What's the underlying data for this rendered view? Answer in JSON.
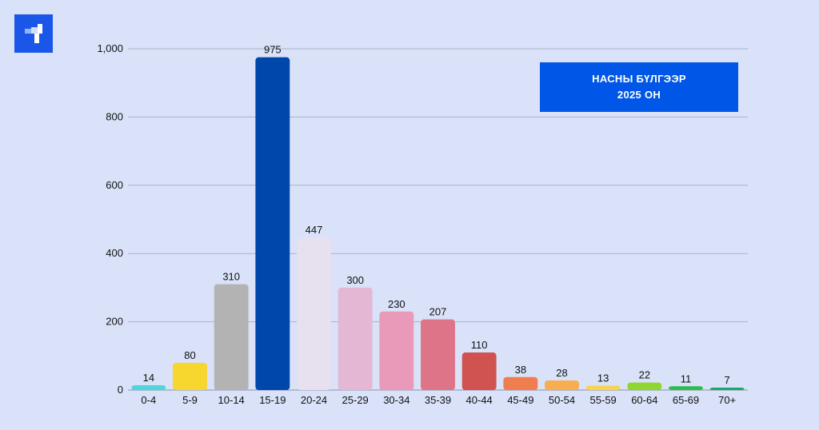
{
  "brand": {
    "logo_icon": "brand-logo-icon",
    "color": "#1a57e8"
  },
  "chart_data": {
    "type": "bar",
    "title_lines": [
      "НАСНЫ БҮЛГЭЭР",
      "2025 ОН"
    ],
    "categories": [
      "0-4",
      "5-9",
      "10-14",
      "15-19",
      "20-24",
      "25-29",
      "30-34",
      "35-39",
      "40-44",
      "45-49",
      "50-54",
      "55-59",
      "60-64",
      "65-69",
      "70+"
    ],
    "values": [
      14,
      80,
      310,
      975,
      447,
      300,
      230,
      207,
      110,
      38,
      28,
      13,
      22,
      11,
      7
    ],
    "value_labels": [
      "14",
      "80",
      "310",
      "975",
      "447",
      "300",
      "230",
      "207",
      "110",
      "38",
      "28",
      "13",
      "22",
      "11",
      "7"
    ],
    "colors": [
      "#4fd6dc",
      "#f7d62e",
      "#b3b3b3",
      "#0047ab",
      "#e6e0ef",
      "#e4b7d4",
      "#e99ab9",
      "#de7488",
      "#d05251",
      "#f07d4f",
      "#f9ad51",
      "#f7d54b",
      "#8fd62e",
      "#2dbd4c",
      "#19a66e"
    ],
    "yticks": [
      0,
      200,
      400,
      600,
      800,
      1000
    ],
    "ytick_labels": [
      "0",
      "200",
      "400",
      "600",
      "800",
      "1,000"
    ],
    "ylim": [
      0,
      1000
    ],
    "grid": true,
    "legend": "top-right"
  }
}
